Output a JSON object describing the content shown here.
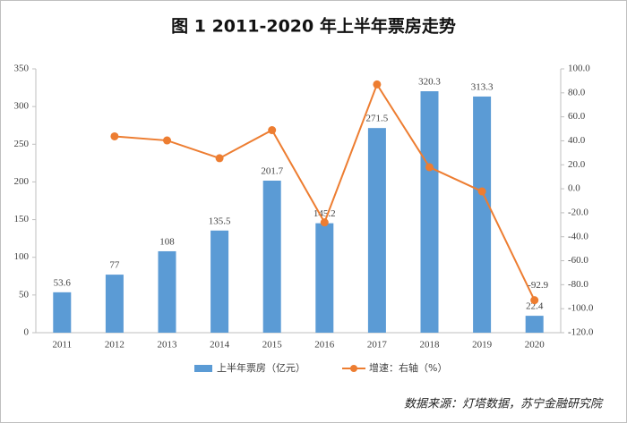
{
  "chart_data": {
    "type": "bar",
    "title": "图 1 2011-2020 年上半年票房走势",
    "categories": [
      "2011",
      "2012",
      "2013",
      "2014",
      "2015",
      "2016",
      "2017",
      "2018",
      "2019",
      "2020"
    ],
    "series": [
      {
        "name": "上半年票房（亿元）",
        "type": "bar",
        "color": "#5b9bd5",
        "axis": "y",
        "values": [
          53.6,
          77,
          108,
          135.5,
          201.7,
          145.2,
          271.5,
          320.3,
          313.3,
          22.4
        ]
      },
      {
        "name": "增速：右轴（%）",
        "type": "line",
        "color": "#ed7d31",
        "axis": "y2",
        "values": [
          null,
          43.7,
          40.3,
          25.5,
          48.9,
          -28.0,
          87.0,
          18.0,
          -2.2,
          -92.9
        ],
        "value_labels": [
          null,
          null,
          null,
          null,
          null,
          null,
          null,
          null,
          null,
          "-92.9"
        ]
      }
    ],
    "ylim": [
      0,
      350
    ],
    "yticks": [
      0,
      50,
      100,
      150,
      200,
      250,
      300,
      350
    ],
    "y2lim": [
      -120,
      100
    ],
    "y2ticks": [
      {
        "value": -120,
        "label": "-120.0"
      },
      {
        "value": -100,
        "label": "-100.0"
      },
      {
        "value": -80,
        "label": "-80.0"
      },
      {
        "value": -60,
        "label": "-60.0"
      },
      {
        "value": -40,
        "label": "-40.0"
      },
      {
        "value": -20,
        "label": "-20.0"
      },
      {
        "value": 0,
        "label": "0.0"
      },
      {
        "value": 20,
        "label": "20.0"
      },
      {
        "value": 40,
        "label": "40.0"
      },
      {
        "value": 60,
        "label": "60.0"
      },
      {
        "value": 80,
        "label": "80.0"
      },
      {
        "value": 100,
        "label": "100.0"
      }
    ],
    "legend": "bottom",
    "source": "数据来源：灯塔数据，苏宁金融研究院"
  }
}
